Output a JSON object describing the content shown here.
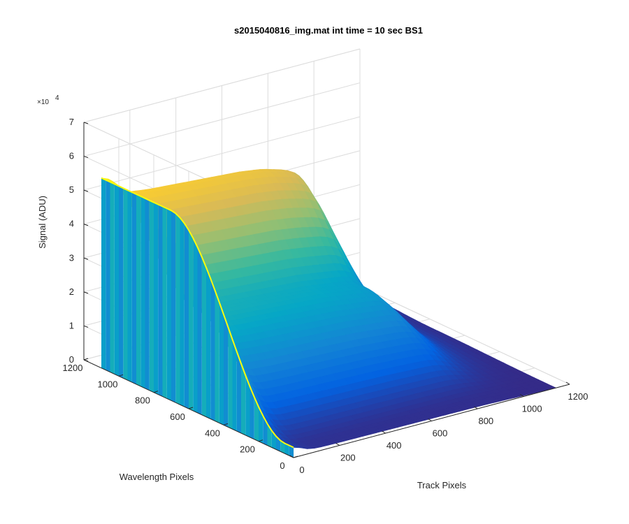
{
  "chart_data": {
    "type": "surface",
    "title": "s2015040816_img.mat int time = 10 sec   BS1",
    "xlabel": "Track Pixels",
    "ylabel": "Wavelength Pixels",
    "zlabel": "Signal (ADU)",
    "z_exponent_base": "×10",
    "z_exponent_power": "4",
    "xlim": [
      0,
      1200
    ],
    "ylim": [
      0,
      1200
    ],
    "zlim": [
      0,
      70000
    ],
    "x_ticks": [
      "0",
      "200",
      "400",
      "600",
      "800",
      "1000",
      "1200"
    ],
    "y_ticks": [
      "0",
      "200",
      "400",
      "600",
      "800",
      "1000",
      "1200"
    ],
    "z_ticks": [
      "0",
      "1",
      "2",
      "3",
      "4",
      "5",
      "6",
      "7"
    ],
    "grid": true,
    "colormap": "parula",
    "colormap_stops": [
      "#352a87",
      "#0363e1",
      "#1485d4",
      "#06a7c6",
      "#38b99e",
      "#92bf73",
      "#d9ba56",
      "#fcce2e",
      "#f9fb0e"
    ],
    "surface_profiles": {
      "track_x": [
        0,
        25,
        40,
        60,
        100,
        200,
        300,
        400,
        500,
        600,
        700,
        800,
        850,
        900,
        950,
        1000,
        1050,
        1100,
        1140
      ],
      "plateau_signal_at_wavelength_1100": [
        56000,
        55500,
        54500,
        52000,
        50000,
        49000,
        48500,
        48000,
        47500,
        47000,
        46000,
        44000,
        42000,
        33000,
        23000,
        14000,
        7000,
        3000,
        1500
      ],
      "plateau_signal_at_wavelength_700": [
        56000,
        48000,
        40000,
        30000,
        25000,
        24000,
        23500,
        23000,
        22500,
        22000,
        21000,
        20000,
        18000,
        13000,
        8000,
        4500,
        2500,
        1200,
        600
      ],
      "plateau_signal_at_wavelength_50": [
        3000,
        2500,
        2000,
        1500,
        1000,
        900,
        850,
        800,
        750,
        700,
        650,
        600,
        550,
        450,
        350,
        250,
        150,
        100,
        50
      ]
    }
  }
}
